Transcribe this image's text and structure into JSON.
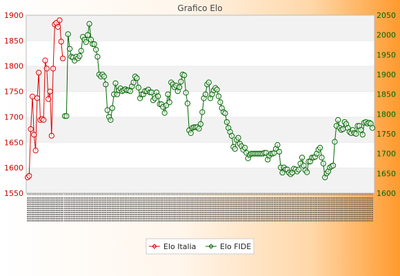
{
  "chart_data": {
    "type": "line",
    "title": "Grafico Elo",
    "xlabel": "",
    "ylabel": "",
    "x_tick_note": "dense overlapping date-like labels starting with 1990 and 2000 (illegible)",
    "left_axis": {
      "ticks": [
        1550,
        1600,
        1650,
        1700,
        1750,
        1800,
        1850,
        1900
      ],
      "ylim": [
        1550,
        1900
      ],
      "color": "#cc0000"
    },
    "right_axis": {
      "ticks": [
        1600,
        1650,
        1700,
        1750,
        1800,
        1850,
        1900,
        1950,
        2000,
        2050
      ],
      "ylim": [
        1600,
        2050
      ],
      "color": "#006600"
    },
    "grid": "alternating horizontal bands",
    "legend_position": "bottom-center",
    "series": [
      {
        "name": "Elo Italia",
        "axis": "left",
        "color": "#dd0000",
        "values": [
          1581,
          1584,
          1676,
          1740,
          1665,
          1634,
          1737,
          1787,
          1694,
          1696,
          1694,
          1811,
          1795,
          1735,
          1750,
          1663,
          1795,
          1882,
          1885,
          1877,
          1890,
          1848,
          1815
        ]
      },
      {
        "name": "Elo FIDE",
        "axis": "right",
        "color": "#006600",
        "values": [
          1795,
          1795,
          2002,
          1965,
          1945,
          1943,
          1935,
          1945,
          1941,
          1947,
          1960,
          1995,
          1988,
          1982,
          2000,
          2028,
          1988,
          1977,
          1977,
          1963,
          1945,
          1900,
          1895,
          1900,
          1895,
          1875,
          1810,
          1793,
          1785,
          1815,
          1850,
          1878,
          1850,
          1860,
          1865,
          1858,
          1860,
          1863,
          1860,
          1860,
          1858,
          1870,
          1880,
          1895,
          1891,
          1867,
          1840,
          1850,
          1850,
          1858,
          1858,
          1862,
          1855,
          1855,
          1835,
          1840,
          1855,
          1845,
          1825,
          1825,
          1818,
          1803,
          1822,
          1850,
          1830,
          1880,
          1875,
          1868,
          1872,
          1858,
          1868,
          1882,
          1900,
          1898,
          1854,
          1827,
          1759,
          1752,
          1765,
          1767,
          1767,
          1767,
          1763,
          1775,
          1805,
          1840,
          1850,
          1875,
          1880,
          1840,
          1850,
          1860,
          1866,
          1862,
          1845,
          1830,
          1815,
          1805,
          1802,
          1780,
          1765,
          1755,
          1745,
          1717,
          1712,
          1735,
          1740,
          1725,
          1719,
          1710,
          1715,
          1702,
          1688,
          1697,
          1700,
          1700,
          1700,
          1700,
          1700,
          1700,
          1700,
          1700,
          1702,
          1702,
          1685,
          1695,
          1700,
          1700,
          1702,
          1712,
          1722,
          1705,
          1665,
          1652,
          1665,
          1660,
          1660,
          1652,
          1648,
          1652,
          1662,
          1660,
          1655,
          1660,
          1675,
          1690,
          1670,
          1658,
          1653,
          1680,
          1680,
          1690,
          1690,
          1692,
          1700,
          1710,
          1715,
          1690,
          1675,
          1640,
          1650,
          1655,
          1665,
          1668,
          1670,
          1730,
          1770,
          1785,
          1765,
          1760,
          1762,
          1780,
          1775,
          1765,
          1755,
          1752,
          1760,
          1752,
          1750,
          1770,
          1770,
          1760,
          1748,
          1778,
          1780,
          1776,
          1778,
          1776,
          1765
        ]
      }
    ]
  },
  "legend": {
    "italia_label": "Elo Italia",
    "fide_label": "Elo FIDE"
  }
}
